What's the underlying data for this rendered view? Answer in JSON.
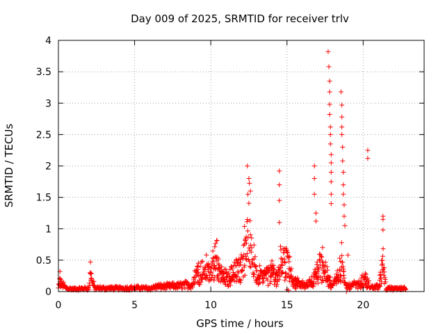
{
  "chart_data": {
    "type": "scatter",
    "title": "Day 009 of 2025, SRMTID for receiver trlv",
    "xlabel": "GPS time / hours",
    "ylabel": "SRMTID / TECUs",
    "xlim": [
      0,
      24
    ],
    "ylim": [
      0,
      4
    ],
    "xticks": [
      "0",
      "5",
      "10",
      "15",
      "20"
    ],
    "yticks": [
      "0",
      "0.5",
      "1",
      "1.5",
      "2",
      "2.5",
      "3",
      "3.5",
      "4"
    ],
    "grid": true,
    "marker": "+",
    "series_color": "#ff0000",
    "series": [
      {
        "name": "SRMTID",
        "profile": [
          [
            0.0,
            0.06
          ],
          [
            0.1,
            0.28
          ],
          [
            0.2,
            0.2
          ],
          [
            0.3,
            0.14
          ],
          [
            0.5,
            0.06
          ],
          [
            1.0,
            0.04
          ],
          [
            1.5,
            0.05
          ],
          [
            2.0,
            0.06
          ],
          [
            2.1,
            0.45
          ],
          [
            2.2,
            0.25
          ],
          [
            2.4,
            0.06
          ],
          [
            3.0,
            0.06
          ],
          [
            4.0,
            0.06
          ],
          [
            5.0,
            0.07
          ],
          [
            6.0,
            0.06
          ],
          [
            6.5,
            0.1
          ],
          [
            7.0,
            0.1
          ],
          [
            8.0,
            0.12
          ],
          [
            8.8,
            0.15
          ],
          [
            9.0,
            0.5
          ],
          [
            9.3,
            0.42
          ],
          [
            9.6,
            0.58
          ],
          [
            10.0,
            0.52
          ],
          [
            10.4,
            0.78
          ],
          [
            10.8,
            0.4
          ],
          [
            11.2,
            0.35
          ],
          [
            11.6,
            0.45
          ],
          [
            12.0,
            0.7
          ],
          [
            12.3,
            1.1
          ],
          [
            12.5,
            1.95
          ],
          [
            12.7,
            0.9
          ],
          [
            13.0,
            0.38
          ],
          [
            13.5,
            0.4
          ],
          [
            14.0,
            0.48
          ],
          [
            14.4,
            0.4
          ],
          [
            14.6,
            0.9
          ],
          [
            15.0,
            0.82
          ],
          [
            15.3,
            0.3
          ],
          [
            15.8,
            0.18
          ],
          [
            16.2,
            0.12
          ],
          [
            16.5,
            0.22
          ],
          [
            16.8,
            0.3
          ],
          [
            17.2,
            0.72
          ],
          [
            17.6,
            0.5
          ],
          [
            17.9,
            0.12
          ],
          [
            18.2,
            0.25
          ],
          [
            18.6,
            0.75
          ],
          [
            18.8,
            0.12
          ],
          [
            19.2,
            0.1
          ],
          [
            19.8,
            0.2
          ],
          [
            20.1,
            0.3
          ],
          [
            20.5,
            0.08
          ],
          [
            21.0,
            0.1
          ],
          [
            21.3,
            0.7
          ],
          [
            21.5,
            0.06
          ],
          [
            22.0,
            0.05
          ],
          [
            22.8,
            0.05
          ]
        ],
        "spikes": [
          [
            0.1,
            0.32
          ],
          [
            2.1,
            0.47
          ],
          [
            12.4,
            2.0
          ],
          [
            12.5,
            1.8
          ],
          [
            12.6,
            1.6
          ],
          [
            14.5,
            1.92
          ],
          [
            14.5,
            1.7
          ],
          [
            14.5,
            1.45
          ],
          [
            14.5,
            1.1
          ],
          [
            16.8,
            2.0
          ],
          [
            16.8,
            1.8
          ],
          [
            16.8,
            1.55
          ],
          [
            16.9,
            1.25
          ],
          [
            16.9,
            1.12
          ],
          [
            17.7,
            3.82
          ],
          [
            17.75,
            3.58
          ],
          [
            17.8,
            3.35
          ],
          [
            17.8,
            3.18
          ],
          [
            17.8,
            2.98
          ],
          [
            17.8,
            2.82
          ],
          [
            17.85,
            2.62
          ],
          [
            17.85,
            2.5
          ],
          [
            17.85,
            2.35
          ],
          [
            17.9,
            2.18
          ],
          [
            17.9,
            2.05
          ],
          [
            17.9,
            1.9
          ],
          [
            17.9,
            1.75
          ],
          [
            17.9,
            1.55
          ],
          [
            17.9,
            1.4
          ],
          [
            18.55,
            3.18
          ],
          [
            18.6,
            2.97
          ],
          [
            18.6,
            2.78
          ],
          [
            18.6,
            2.62
          ],
          [
            18.6,
            2.5
          ],
          [
            18.65,
            2.3
          ],
          [
            18.65,
            2.08
          ],
          [
            18.7,
            1.9
          ],
          [
            18.7,
            1.7
          ],
          [
            18.7,
            1.55
          ],
          [
            18.75,
            1.38
          ],
          [
            18.75,
            1.2
          ],
          [
            18.8,
            1.05
          ],
          [
            20.3,
            2.25
          ],
          [
            20.3,
            2.12
          ],
          [
            21.3,
            1.2
          ],
          [
            21.3,
            1.15
          ],
          [
            21.3,
            0.98
          ],
          [
            19.0,
            0.58
          ],
          [
            15.0,
            0.03
          ],
          [
            15.1,
            0.02
          ],
          [
            18.9,
            0.0
          ]
        ]
      }
    ]
  }
}
